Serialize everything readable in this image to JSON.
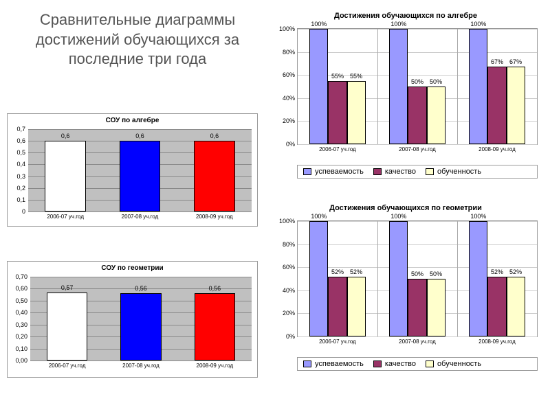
{
  "main_title": "Сравнительные диаграммы достижений обучающихся  за последние три года",
  "sou_algebra": {
    "type": "bar",
    "title": "СОУ по алгебре",
    "title_fontsize": 10,
    "categories": [
      "2006-07 уч.год",
      "2007-08 уч.год",
      "2008-09 уч.год"
    ],
    "values": [
      0.6,
      0.6,
      0.6
    ],
    "value_labels": [
      "0,6",
      "0,6",
      "0,6"
    ],
    "bar_colors": [
      "#ffffff",
      "#0000ff",
      "#ff0000"
    ],
    "ylim": [
      0,
      0.7
    ],
    "yticks": [
      0,
      0.1,
      0.2,
      0.3,
      0.4,
      0.5,
      0.6,
      0.7
    ],
    "ytick_labels": [
      "0",
      "0,1",
      "0,2",
      "0,3",
      "0,4",
      "0,5",
      "0,6",
      "0,7"
    ],
    "plot_bg": "#c0c0c0",
    "grid_color": "#808080"
  },
  "sou_geometry": {
    "type": "bar",
    "title": "СОУ по геометрии",
    "title_fontsize": 10,
    "categories": [
      "2006-07 уч.год",
      "2007-08 уч.год",
      "2008-09 уч.год"
    ],
    "values": [
      0.57,
      0.56,
      0.56
    ],
    "value_labels": [
      "0,57",
      "0,56",
      "0,56"
    ],
    "bar_colors": [
      "#ffffff",
      "#0000ff",
      "#ff0000"
    ],
    "ylim": [
      0,
      0.7
    ],
    "yticks": [
      0.0,
      0.1,
      0.2,
      0.3,
      0.4,
      0.5,
      0.6,
      0.7
    ],
    "ytick_labels": [
      "0,00",
      "0,10",
      "0,20",
      "0,30",
      "0,40",
      "0,50",
      "0,60",
      "0,70"
    ],
    "plot_bg": "#c0c0c0",
    "grid_color": "#808080"
  },
  "ach_algebra": {
    "type": "grouped-bar",
    "title": "Достижения обучающихся по алгебре",
    "title_fontsize": 11,
    "groups": [
      "2006-07 уч.год",
      "2007-08 уч.год",
      "2008-09 уч.год"
    ],
    "series": [
      {
        "name": "успеваемость",
        "color": "#9999ff",
        "values": [
          100,
          100,
          100
        ],
        "labels": [
          "100%",
          "100%",
          "100%"
        ]
      },
      {
        "name": "качество",
        "color": "#993366",
        "values": [
          55,
          50,
          67
        ],
        "labels": [
          "55%",
          "50%",
          "67%"
        ]
      },
      {
        "name": "обученность",
        "color": "#ffffcc",
        "values": [
          55,
          50,
          67
        ],
        "labels": [
          "55%",
          "50%",
          "67%"
        ]
      }
    ],
    "ylim": [
      0,
      100
    ],
    "yticks": [
      0,
      20,
      40,
      60,
      80,
      100
    ],
    "ytick_labels": [
      "0%",
      "20%",
      "40%",
      "60%",
      "80%",
      "100%"
    ],
    "plot_bg": "#ffffff",
    "grid_color": "#cccccc"
  },
  "ach_geometry": {
    "type": "grouped-bar",
    "title": "Достижения обучающихся по геометрии",
    "title_fontsize": 11,
    "groups": [
      "2006-07 уч.год",
      "2007-08 уч.год",
      "2008-09 уч.год"
    ],
    "series": [
      {
        "name": "успеваемость",
        "color": "#9999ff",
        "values": [
          100,
          100,
          100
        ],
        "labels": [
          "100%",
          "100%",
          "100%"
        ]
      },
      {
        "name": "качество",
        "color": "#993366",
        "values": [
          52,
          50,
          52
        ],
        "labels": [
          "52%",
          "50%",
          "52%"
        ]
      },
      {
        "name": "обученность",
        "color": "#ffffcc",
        "values": [
          52,
          50,
          52
        ],
        "labels": [
          "52%",
          "50%",
          "52%"
        ]
      }
    ],
    "ylim": [
      0,
      100
    ],
    "yticks": [
      0,
      20,
      40,
      60,
      80,
      100
    ],
    "ytick_labels": [
      "0%",
      "20%",
      "40%",
      "60%",
      "80%",
      "100%"
    ],
    "plot_bg": "#ffffff",
    "grid_color": "#cccccc"
  },
  "legend_labels": [
    "успеваемость",
    "качество",
    "обученность"
  ],
  "legend_colors": [
    "#9999ff",
    "#993366",
    "#ffffcc"
  ]
}
